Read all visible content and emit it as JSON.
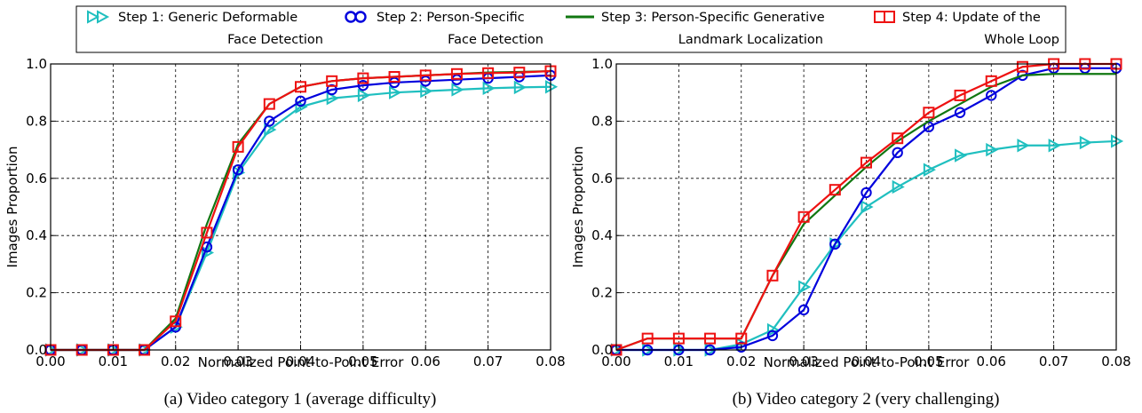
{
  "legend": [
    {
      "line1": "Step 1: Generic Deformable",
      "line2": "Face Detection",
      "color": "#1fbfbf",
      "marker": "triangle-right"
    },
    {
      "line1": "Step 2: Person-Specific",
      "line2": "Face Detection",
      "color": "#0000dd",
      "marker": "circle"
    },
    {
      "line1": "Step 3: Person-Specific Generative",
      "line2": "Landmark Localization",
      "color": "#117711",
      "marker": "none"
    },
    {
      "line1": "Step 4: Update of the",
      "line2": "Whole Loop",
      "color": "#ee1111",
      "marker": "square"
    }
  ],
  "chart_data": [
    {
      "type": "line",
      "caption": "(a) Video category 1 (average difficulty)",
      "xlabel": "Normalized Point-to-Point Error",
      "ylabel": "Images Proportion",
      "xlim": [
        0,
        0.08
      ],
      "ylim": [
        0,
        1.0
      ],
      "xticks": [
        "0.00",
        "0.01",
        "0.02",
        "0.03",
        "0.04",
        "0.05",
        "0.06",
        "0.07",
        "0.08"
      ],
      "yticks": [
        "0.0",
        "0.2",
        "0.4",
        "0.6",
        "0.8",
        "1.0"
      ],
      "grid": true,
      "x": [
        0,
        0.005,
        0.01,
        0.015,
        0.02,
        0.025,
        0.03,
        0.035,
        0.04,
        0.045,
        0.05,
        0.055,
        0.06,
        0.065,
        0.07,
        0.075,
        0.08
      ],
      "series": [
        {
          "name": "Step 1: Generic Deformable Face Detection",
          "values": [
            0,
            0,
            0,
            0,
            0.08,
            0.34,
            0.62,
            0.77,
            0.85,
            0.88,
            0.89,
            0.9,
            0.905,
            0.91,
            0.915,
            0.918,
            0.92
          ]
        },
        {
          "name": "Step 2: Person-Specific Face Detection",
          "values": [
            0,
            0,
            0,
            0,
            0.08,
            0.36,
            0.63,
            0.8,
            0.87,
            0.91,
            0.925,
            0.935,
            0.94,
            0.945,
            0.95,
            0.955,
            0.96
          ]
        },
        {
          "name": "Step 3: Person-Specific Generative Landmark Localization",
          "values": [
            0,
            0,
            0,
            0,
            0.11,
            0.44,
            0.72,
            0.86,
            0.92,
            0.94,
            0.95,
            0.955,
            0.96,
            0.965,
            0.97,
            0.972,
            0.975
          ]
        },
        {
          "name": "Step 4: Update of the Whole Loop",
          "values": [
            0,
            0,
            0,
            0,
            0.1,
            0.41,
            0.71,
            0.86,
            0.92,
            0.94,
            0.95,
            0.955,
            0.96,
            0.965,
            0.968,
            0.97,
            0.975
          ]
        }
      ]
    },
    {
      "type": "line",
      "caption": "(b) Video category 2 (very challenging)",
      "xlabel": "Normalized Point-to-Point Error",
      "ylabel": "Images Proportion",
      "xlim": [
        0,
        0.08
      ],
      "ylim": [
        0,
        1.0
      ],
      "xticks": [
        "0.00",
        "0.01",
        "0.02",
        "0.03",
        "0.04",
        "0.05",
        "0.06",
        "0.07",
        "0.08"
      ],
      "yticks": [
        "0.0",
        "0.2",
        "0.4",
        "0.6",
        "0.8",
        "1.0"
      ],
      "grid": true,
      "x": [
        0,
        0.005,
        0.01,
        0.015,
        0.02,
        0.025,
        0.03,
        0.035,
        0.04,
        0.045,
        0.05,
        0.055,
        0.06,
        0.065,
        0.07,
        0.075,
        0.08
      ],
      "series": [
        {
          "name": "Step 1: Generic Deformable Face Detection",
          "values": [
            0,
            0,
            0,
            0,
            0.02,
            0.07,
            0.22,
            0.37,
            0.5,
            0.57,
            0.63,
            0.68,
            0.7,
            0.715,
            0.715,
            0.725,
            0.73
          ]
        },
        {
          "name": "Step 2: Person-Specific Face Detection",
          "values": [
            0,
            0,
            0,
            0,
            0.01,
            0.05,
            0.14,
            0.37,
            0.55,
            0.69,
            0.78,
            0.83,
            0.89,
            0.96,
            0.985,
            0.985,
            0.985
          ]
        },
        {
          "name": "Step 3: Person-Specific Generative Landmark Localization",
          "values": [
            0,
            0.04,
            0.04,
            0.04,
            0.04,
            0.26,
            0.44,
            0.54,
            0.64,
            0.73,
            0.8,
            0.86,
            0.92,
            0.96,
            0.965,
            0.965,
            0.965
          ]
        },
        {
          "name": "Step 4: Update of the Whole Loop",
          "values": [
            0,
            0.04,
            0.04,
            0.04,
            0.04,
            0.26,
            0.465,
            0.56,
            0.655,
            0.74,
            0.83,
            0.89,
            0.94,
            0.99,
            1.0,
            1.0,
            1.0
          ]
        }
      ]
    }
  ]
}
